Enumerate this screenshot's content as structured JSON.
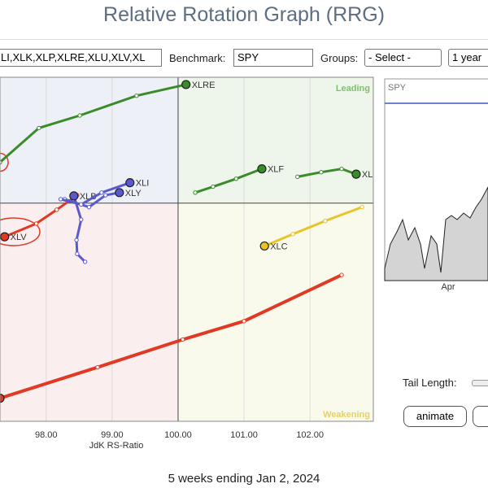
{
  "header": {
    "title": "Relative Rotation Graph (RRG)"
  },
  "controls": {
    "symbols": "LI,XLK,XLP,XLRE,XLU,XLV,XL",
    "benchmark_label": "Benchmark:",
    "benchmark": "SPY",
    "groups_label": "Groups:",
    "groups": "- Select -",
    "period": "1 year",
    "tail_length_label": "Tail Length:",
    "animate": "animate"
  },
  "mini_chart": {
    "title": "SPY",
    "xlabel": "Apr"
  },
  "footer": "5 weeks ending Jan 2, 2024",
  "chart_data": {
    "type": "line",
    "xlabel": "JdK RS-Ratio",
    "quadrant_labels": {
      "leading": "Leading",
      "weakening": "Weakening"
    },
    "xlim": [
      97.3,
      102.96
    ],
    "ylim": [
      96.69,
      101.91
    ],
    "xticks": [
      {
        "value": 98,
        "label": "98.00"
      },
      {
        "value": 99,
        "label": "99.00"
      },
      {
        "value": 100,
        "label": "100.00"
      },
      {
        "value": 101,
        "label": "101.00"
      },
      {
        "value": 102,
        "label": "102.00"
      }
    ],
    "yticks": [
      100
    ],
    "series": [
      {
        "name": "XLRE",
        "color": "#3a8c2a",
        "x": [
          97.3,
          97.89,
          98.51,
          99.37,
          100.12
        ],
        "values": [
          100.62,
          101.14,
          101.33,
          101.63,
          101.8
        ]
      },
      {
        "name": "XLF",
        "color": "#3a8c2a",
        "x": [
          100.26,
          100.53,
          100.88,
          101.27
        ],
        "values": [
          100.16,
          100.25,
          100.37,
          100.52
        ]
      },
      {
        "name": "XLK",
        "color": "#3a8c2a",
        "x": [
          101.81,
          102.17,
          102.48,
          102.7
        ],
        "values": [
          100.4,
          100.47,
          100.52,
          100.44
        ]
      },
      {
        "name": "XLC",
        "color": "#e8c42a",
        "x": [
          102.79,
          102.23,
          101.74,
          101.31
        ],
        "values": [
          99.94,
          99.73,
          99.53,
          99.35
        ]
      },
      {
        "color": "#e03a25",
        "x": [
          102.48,
          101.0,
          100.07,
          98.78,
          97.3
        ],
        "values": [
          98.91,
          98.21,
          97.93,
          97.51,
          97.04
        ]
      },
      {
        "name": "XLV",
        "color": "#e03a25",
        "x": [
          98.47,
          98.16,
          97.85,
          97.37
        ],
        "values": [
          100.12,
          99.9,
          99.69,
          99.49
        ]
      },
      {
        "name": "XLB",
        "color": "#5a5ad0",
        "x": [
          98.59,
          98.47,
          98.46,
          98.53,
          98.42
        ],
        "values": [
          99.11,
          99.23,
          99.44,
          99.75,
          100.11
        ]
      },
      {
        "name": "XLY",
        "color": "#5a5ad0",
        "x": [
          98.28,
          98.65,
          98.9,
          99.11
        ],
        "values": [
          100.06,
          99.94,
          100.12,
          100.16
        ]
      },
      {
        "name": "XLI",
        "color": "#5a5ad0",
        "x": [
          98.22,
          98.53,
          98.84,
          99.27
        ],
        "values": [
          100.06,
          99.98,
          100.16,
          100.31
        ]
      }
    ]
  }
}
